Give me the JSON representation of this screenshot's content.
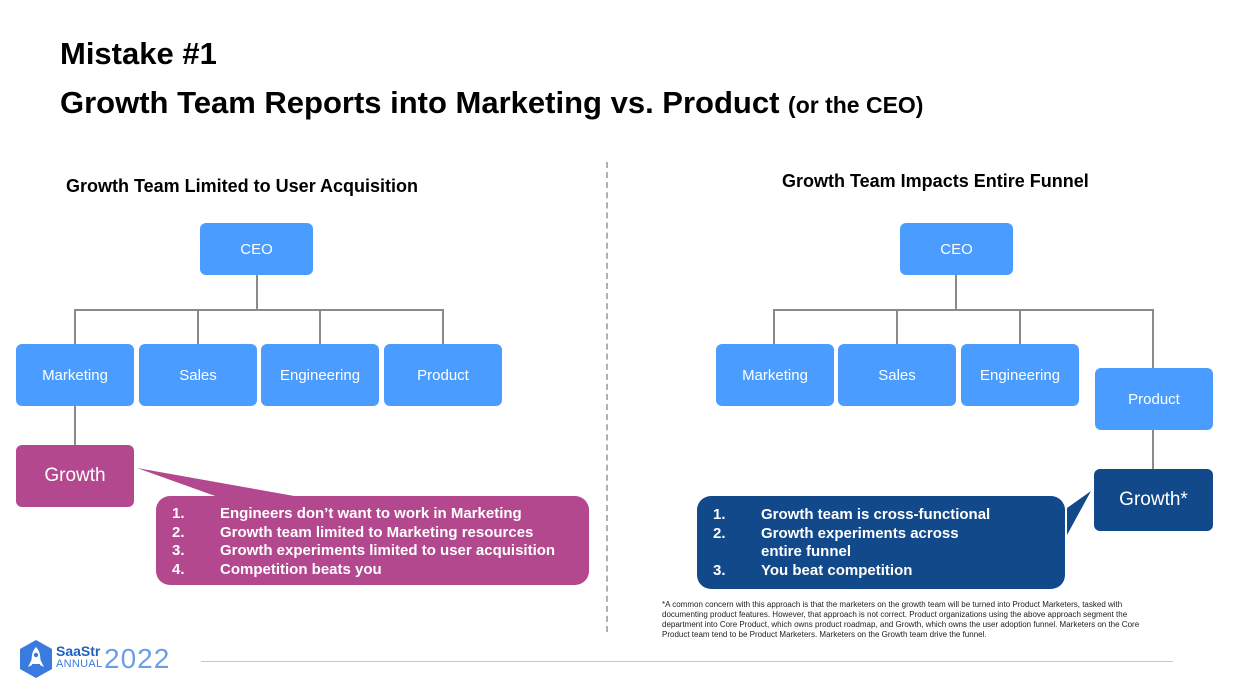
{
  "header": {
    "title_line1": "Mistake #1",
    "title_line2": "Growth Team Reports into Marketing vs. Product",
    "title_line2_suffix": "(or the CEO)"
  },
  "left_panel": {
    "heading": "Growth Team Limited to User Acquisition",
    "ceo": "CEO",
    "departments": [
      "Marketing",
      "Sales",
      "Engineering",
      "Product"
    ],
    "growth": "Growth",
    "points": [
      {
        "num": "1.",
        "text": "Engineers don’t want to work in Marketing"
      },
      {
        "num": "2.",
        "text": "Growth team limited to Marketing resources"
      },
      {
        "num": "3.",
        "text": "Growth experiments limited to user acquisition"
      },
      {
        "num": "4.",
        "text": "Competition beats you"
      }
    ]
  },
  "right_panel": {
    "heading": "Growth Team Impacts Entire Funnel",
    "ceo": "CEO",
    "departments": [
      "Marketing",
      "Sales",
      "Engineering",
      "Product"
    ],
    "growth": "Growth*",
    "points": [
      {
        "num": "1.",
        "text": "Growth team is cross-functional"
      },
      {
        "num": "2.",
        "text": "Growth experiments across entire funnel"
      },
      {
        "num": "3.",
        "text": "You beat competition"
      }
    ],
    "footnote": "*A common concern with this approach is that the marketers on the growth team will be turned into Product Marketers, tasked with documenting product features.  However, that approach is not correct.  Product organizations using the above approach segment the department into Core Product, which owns product roadmap, and Growth, which owns the user adoption funnel.  Marketers on the Core Product team tend to be Product Marketers.  Marketers on the Growth team drive the funnel."
  },
  "logo": {
    "brand": "SaaStr",
    "sub": "ANNUAL",
    "year": "2022"
  },
  "colors": {
    "box_blue": "#4a9cff",
    "growth_magenta": "#b3488f",
    "growth_navy": "#12498a",
    "connector_gray": "#8a8a8a"
  }
}
